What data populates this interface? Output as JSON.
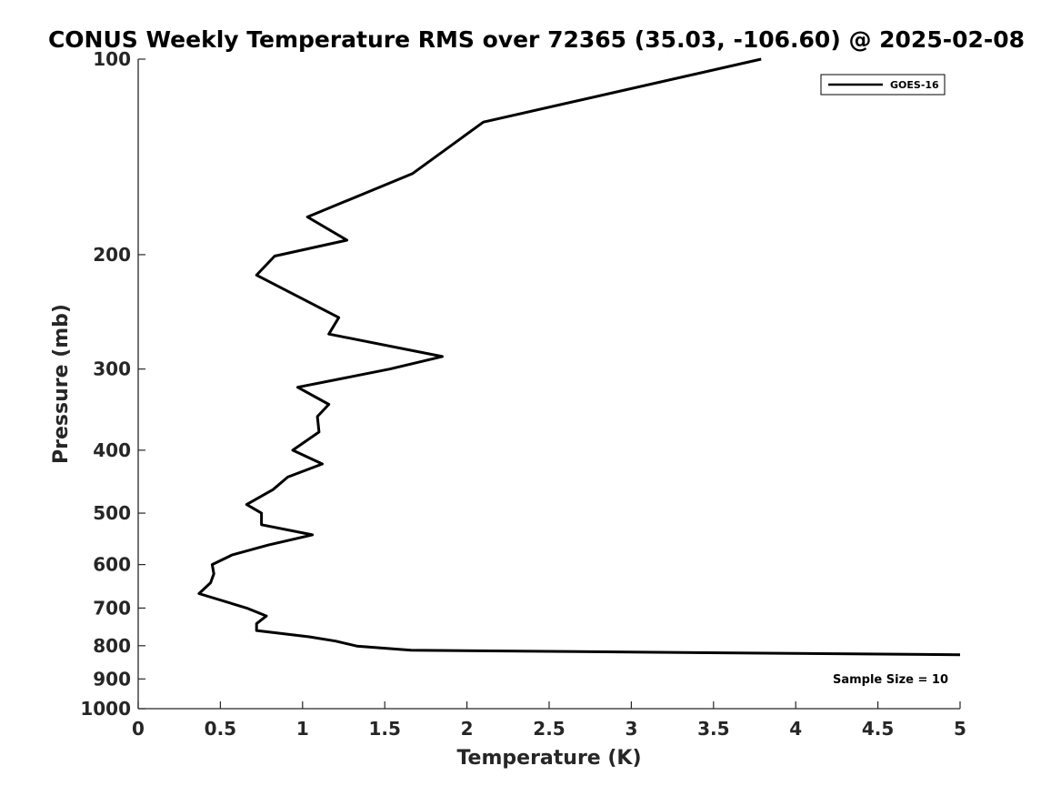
{
  "chart_data": {
    "type": "line",
    "title": "CONUS Weekly Temperature RMS over 72365 (35.03, -106.60) @ 2025-02-08",
    "xlabel": "Temperature (K)",
    "ylabel": "Pressure (mb)",
    "xlim": [
      0,
      5
    ],
    "ylim": [
      100,
      1000
    ],
    "yscale": "log",
    "y_reversed": true,
    "x_ticks": [
      "0",
      "0.5",
      "1",
      "1.5",
      "2",
      "2.5",
      "3",
      "3.5",
      "4",
      "4.5",
      "5"
    ],
    "y_ticks": [
      "100",
      "200",
      "300",
      "400",
      "500",
      "600",
      "700",
      "800",
      "900",
      "1000"
    ],
    "grid": false,
    "legend_position": "top-right",
    "annotation": "Sample Size = 10",
    "series": [
      {
        "name": "GOES-16",
        "color": "#000000",
        "points": [
          {
            "x": 3.79,
            "y": 100
          },
          {
            "x": 2.1,
            "y": 125
          },
          {
            "x": 1.67,
            "y": 150
          },
          {
            "x": 1.03,
            "y": 175
          },
          {
            "x": 1.27,
            "y": 190
          },
          {
            "x": 0.83,
            "y": 201
          },
          {
            "x": 0.72,
            "y": 215
          },
          {
            "x": 1.22,
            "y": 250
          },
          {
            "x": 1.16,
            "y": 265
          },
          {
            "x": 1.85,
            "y": 287
          },
          {
            "x": 1.53,
            "y": 300
          },
          {
            "x": 0.97,
            "y": 320
          },
          {
            "x": 1.16,
            "y": 340
          },
          {
            "x": 1.09,
            "y": 355
          },
          {
            "x": 1.1,
            "y": 375
          },
          {
            "x": 0.94,
            "y": 400
          },
          {
            "x": 1.12,
            "y": 420
          },
          {
            "x": 0.91,
            "y": 440
          },
          {
            "x": 0.82,
            "y": 460
          },
          {
            "x": 0.66,
            "y": 485
          },
          {
            "x": 0.75,
            "y": 500
          },
          {
            "x": 0.75,
            "y": 521
          },
          {
            "x": 1.06,
            "y": 540
          },
          {
            "x": 0.79,
            "y": 560
          },
          {
            "x": 0.57,
            "y": 580
          },
          {
            "x": 0.45,
            "y": 600
          },
          {
            "x": 0.46,
            "y": 620
          },
          {
            "x": 0.44,
            "y": 640
          },
          {
            "x": 0.37,
            "y": 665
          },
          {
            "x": 0.66,
            "y": 700
          },
          {
            "x": 0.78,
            "y": 720
          },
          {
            "x": 0.72,
            "y": 740
          },
          {
            "x": 0.72,
            "y": 758
          },
          {
            "x": 1.04,
            "y": 775
          },
          {
            "x": 1.2,
            "y": 787
          },
          {
            "x": 1.33,
            "y": 801
          },
          {
            "x": 1.66,
            "y": 813
          },
          {
            "x": 5.0,
            "y": 826
          }
        ]
      }
    ]
  }
}
